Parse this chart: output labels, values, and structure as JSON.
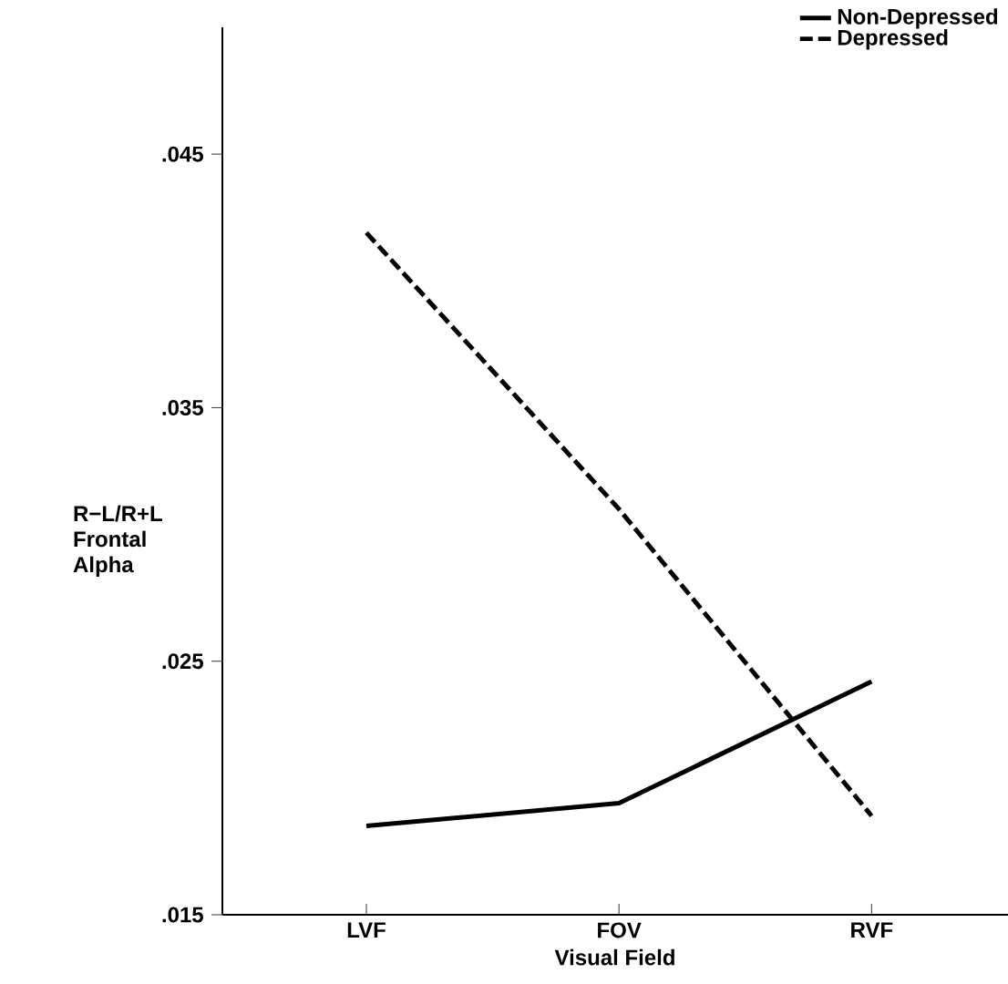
{
  "chart_data": {
    "type": "line",
    "xlabel": "Visual Field",
    "ylabel": "R−L/R+L Frontal Alpha",
    "categories": [
      "LVF",
      "FOV",
      "RVF"
    ],
    "ylim": [
      0.015,
      0.05
    ],
    "yticks": [
      {
        "value": 0.015,
        "label": ".015"
      },
      {
        "value": 0.025,
        "label": ".025"
      },
      {
        "value": 0.035,
        "label": ".035"
      },
      {
        "value": 0.045,
        "label": ".045"
      }
    ],
    "grid": false,
    "legend": "top right",
    "marker": "none",
    "series": [
      {
        "name": "Non-Depressed",
        "color": "#000000",
        "line_style": "solid",
        "values": [
          0.0185,
          0.0194,
          0.0242
        ]
      },
      {
        "name": "Depressed",
        "color": "#000000",
        "line_style": "dashed",
        "values": [
          0.0419,
          0.031,
          0.0189
        ]
      }
    ]
  }
}
